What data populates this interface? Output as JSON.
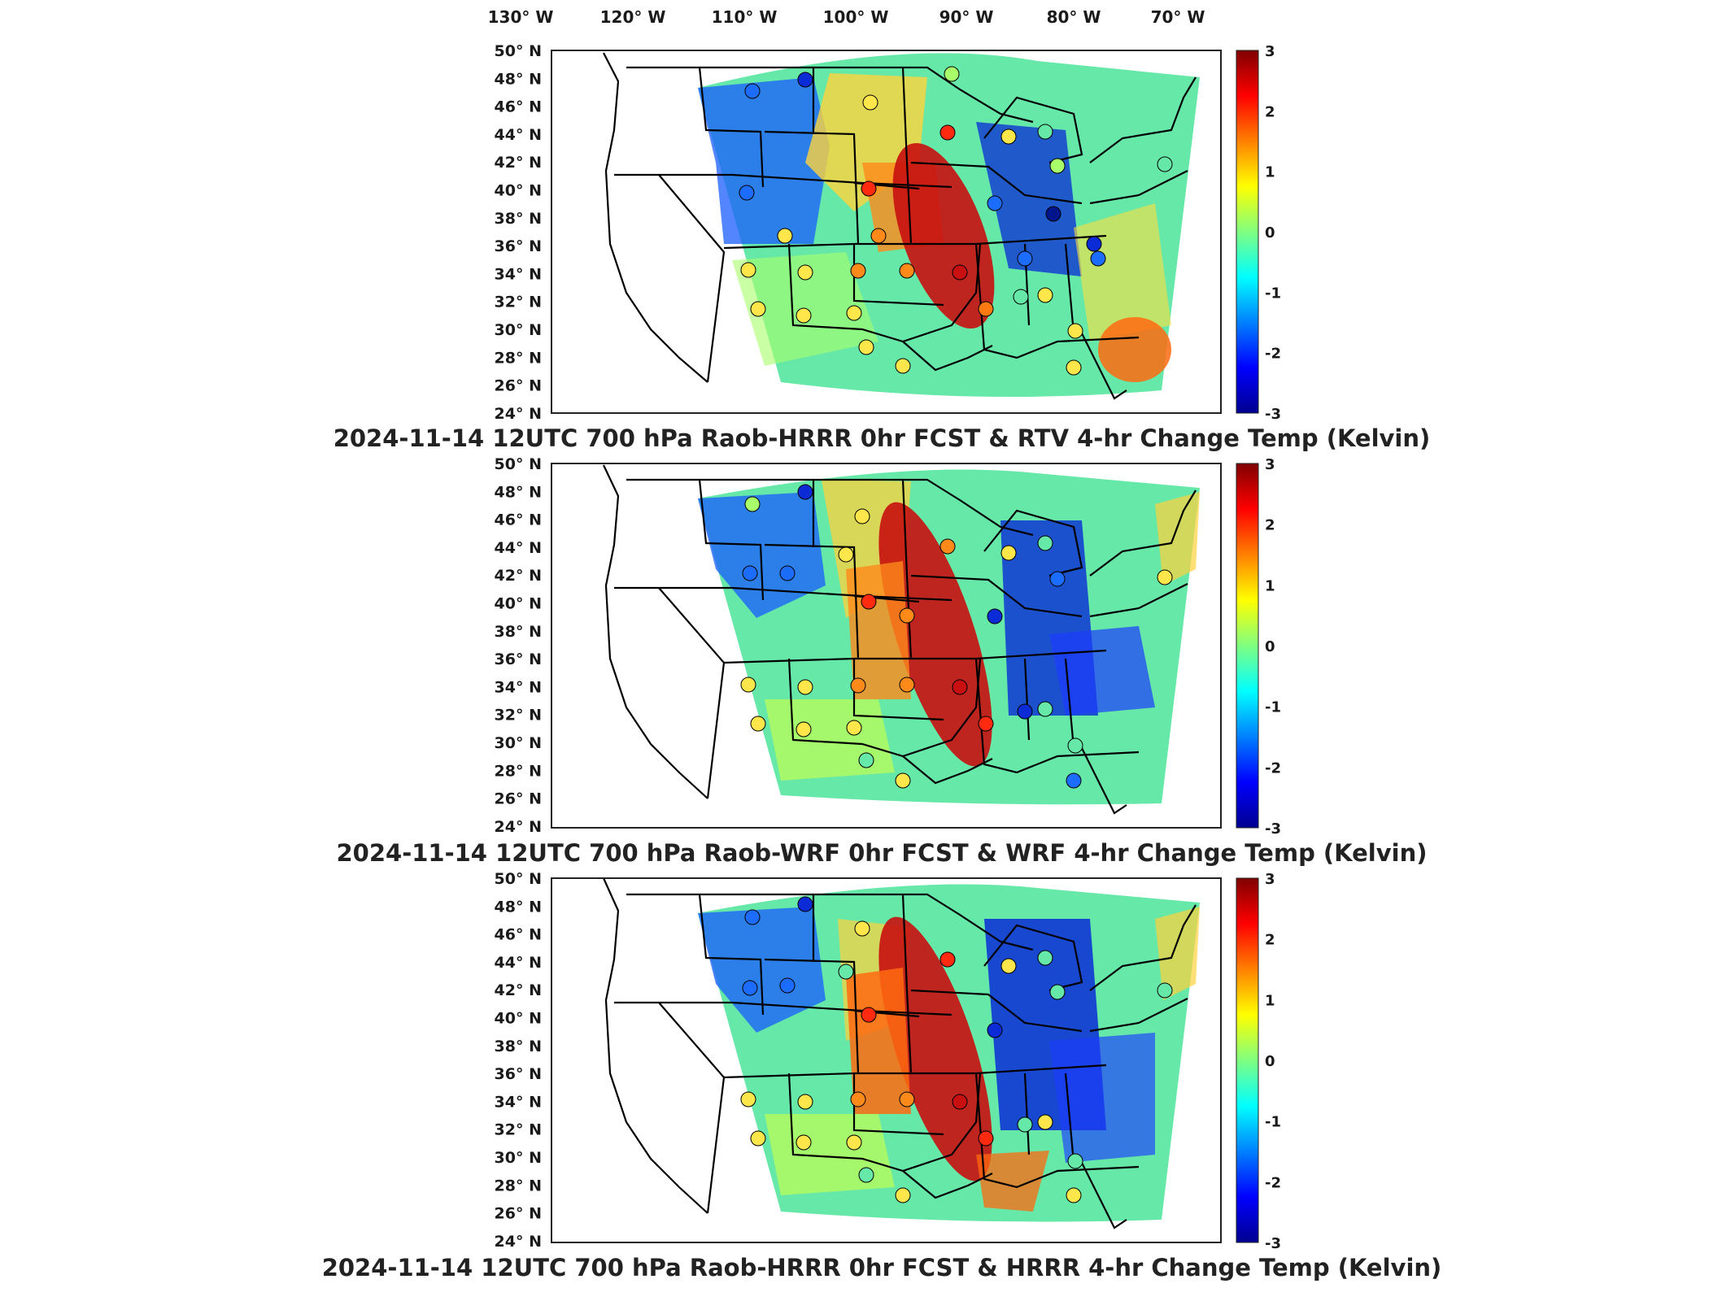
{
  "lon_labels": [
    "130° W",
    "120° W",
    "110° W",
    "100° W",
    "90° W",
    "80° W",
    "70° W"
  ],
  "lat_labels": [
    "50° N",
    "48° N",
    "46° N",
    "44° N",
    "42° N",
    "40° N",
    "38° N",
    "36° N",
    "34° N",
    "32° N",
    "30° N",
    "28° N",
    "26° N",
    "24° N"
  ],
  "colorbar_ticks": [
    "3",
    "2",
    "1",
    "0",
    "-1",
    "-2",
    "-3"
  ],
  "colormap": [
    "#00008f",
    "#0000ff",
    "#0080ff",
    "#00ffff",
    "#80ff80",
    "#ffff00",
    "#ff8000",
    "#ff0000",
    "#800000"
  ],
  "panels": [
    {
      "title": "2024-11-14 12UTC 700 hPa Raob-HRRR 0hr FCST & RTV 4-hr Change Temp (Kelvin)"
    },
    {
      "title": "2024-11-14 12UTC 700 hPa Raob-WRF 0hr FCST & WRF 4-hr Change Temp (Kelvin)"
    },
    {
      "title": "2024-11-14 12UTC 700 hPa Raob-HRRR 0hr FCST & HRRR 4-hr Change Temp (Kelvin)"
    }
  ]
}
